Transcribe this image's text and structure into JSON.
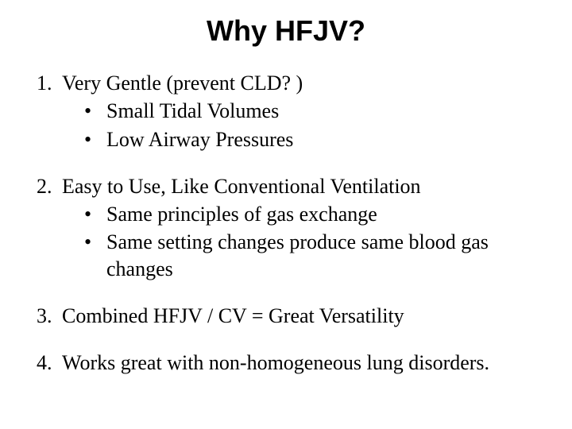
{
  "title": "Why HFJV?",
  "items": [
    {
      "text": "Very Gentle (prevent CLD? )",
      "sub": [
        "Small Tidal Volumes",
        "Low Airway Pressures"
      ]
    },
    {
      "text": "Easy to Use, Like Conventional Ventilation",
      "sub": [
        "Same principles of gas exchange",
        "Same setting changes produce same blood gas changes"
      ]
    },
    {
      "text": "Combined HFJV / CV   =    Great Versatility",
      "sub": []
    },
    {
      "text": "Works great with non-homogeneous lung disorders.",
      "sub": []
    }
  ],
  "colors": {
    "background": "#ffffff",
    "text": "#000000"
  },
  "typography": {
    "title_font": "Arial",
    "title_weight": 700,
    "title_size_pt": 27,
    "body_font": "Times New Roman",
    "body_size_pt": 20
  }
}
